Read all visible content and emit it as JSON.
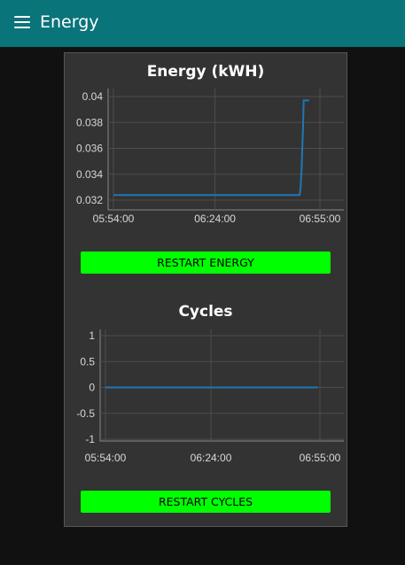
{
  "header": {
    "title": "Energy",
    "menu_icon": "hamburger-menu-icon"
  },
  "colors": {
    "header": "#097479",
    "button": "#00ff00",
    "line": "#1f77b4",
    "card": "#333333"
  },
  "energy_panel": {
    "title": "Energy (kWH)",
    "button_label": "RESTART ENERGY"
  },
  "cycles_panel": {
    "title": "Cycles",
    "button_label": "RESTART CYCLES"
  },
  "chart_data": [
    {
      "type": "line",
      "title": "Energy (kWH)",
      "x_tick_labels": [
        "05:54:00",
        "06:24:00",
        "06:55:00"
      ],
      "x_ticks_minutes": [
        0,
        30,
        61
      ],
      "xlim_minutes": [
        -1,
        63
      ],
      "ylim": [
        0.0315,
        0.0405
      ],
      "y_ticks": [
        0.032,
        0.034,
        0.036,
        0.038,
        0.04
      ],
      "y_tick_labels": [
        "0.032",
        "0.034",
        "0.036",
        "0.038",
        "0.04"
      ],
      "grid": true,
      "series": [
        {
          "x_minutes": [
            0,
            54.6,
            55.0,
            55.3,
            55.6,
            55.8,
            56.0,
            56.2,
            57.8
          ],
          "values": [
            0.0324,
            0.0324,
            0.0324,
            0.033,
            0.0345,
            0.036,
            0.0375,
            0.0397,
            0.0397
          ]
        }
      ]
    },
    {
      "type": "line",
      "title": "Cycles",
      "x_tick_labels": [
        "05:54:00",
        "06:24:00",
        "06:55:00"
      ],
      "x_ticks_minutes": [
        0,
        30,
        61
      ],
      "xlim_minutes": [
        -1,
        63
      ],
      "ylim": [
        -1,
        1
      ],
      "y_ticks": [
        -1,
        -0.5,
        0,
        0.5,
        1
      ],
      "y_tick_labels": [
        "-1",
        "-0.5",
        "0",
        "0.5",
        "1"
      ],
      "grid": true,
      "series": [
        {
          "x_minutes": [
            0,
            60.5
          ],
          "values": [
            0,
            0
          ]
        }
      ]
    }
  ]
}
